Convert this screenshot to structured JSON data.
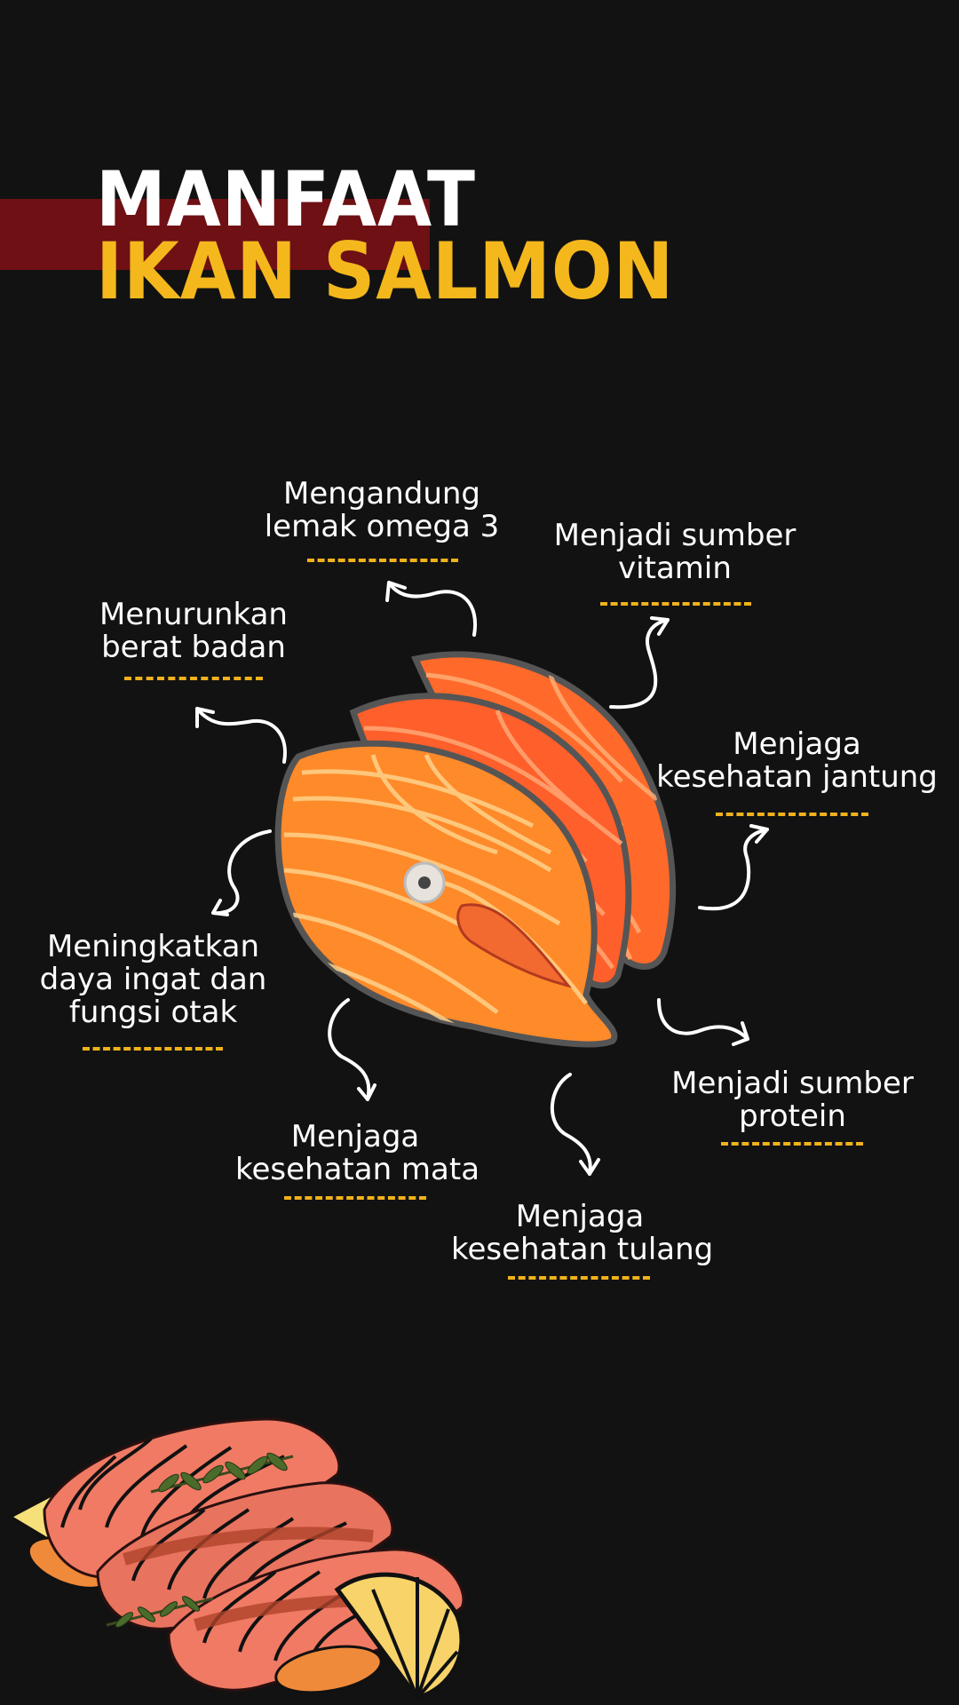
{
  "title": {
    "line1": "MANFAAT",
    "line2": "IKAN SALMON"
  },
  "colors": {
    "background": "#121212",
    "band": "#6e1014",
    "accent": "#f4b81d",
    "salmon": "#ff7a1a"
  },
  "benefits": [
    {
      "line1": "Mengandung",
      "line2": "lemak omega 3"
    },
    {
      "line1": "Menjadi sumber",
      "line2": "vitamin"
    },
    {
      "line1": "Menurunkan",
      "line2": "berat badan"
    },
    {
      "line1": "Menjaga",
      "line2": "kesehatan jantung"
    },
    {
      "line1": "Meningkatkan",
      "line2": "daya ingat dan",
      "line3": "fungsi otak"
    },
    {
      "line1": "Menjadi sumber",
      "line2": "protein"
    },
    {
      "line1": "Menjaga",
      "line2": "kesehatan mata"
    },
    {
      "line1": "Menjaga",
      "line2": "kesehatan tulang"
    }
  ],
  "illustrations": [
    "salmon-steak-illustration",
    "salmon-fillet-platter-illustration",
    "lemon-slice-icon",
    "rosemary-icon"
  ]
}
